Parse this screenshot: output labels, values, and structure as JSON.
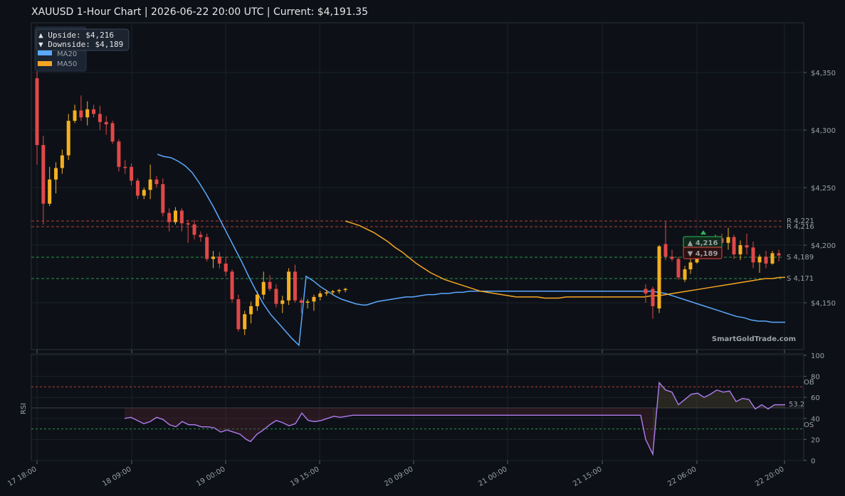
{
  "chart_data": {
    "type": "candlestick",
    "title": "XAUUSD  1-Hour Chart  |  2026-06-22 20:00 UTC  |  Current: $4,191.35",
    "price_axis": {
      "ylim": [
        4105,
        4390
      ],
      "ticks": [
        4150,
        4200,
        4250,
        4300,
        4350
      ],
      "tick_labels": [
        "$4,150",
        "$4,200",
        "$4,250",
        "$4,300",
        "$4,350"
      ]
    },
    "rsi_axis": {
      "ylabel": "RSI",
      "ylim": [
        0,
        100
      ],
      "ticks": [
        0,
        20,
        40,
        60,
        80,
        100
      ],
      "overbought": 70,
      "oversold": 30,
      "ob_label": "OB",
      "os_label": "OS",
      "current": 53.2,
      "current_label": "53.2"
    },
    "x_tick_labels": [
      "17 18:00",
      "18 09:00",
      "19 00:00",
      "19 15:00",
      "20 09:00",
      "21 00:00",
      "21 15:00",
      "22 06:00",
      "22 20:00"
    ],
    "info_box": {
      "upside": "▲ Upside:   $4,216",
      "downside": "▼ Downside: $4,189"
    },
    "legend": [
      {
        "name": "MA20",
        "color": "#5ba8ff"
      },
      {
        "name": "MA50",
        "color": "#f5a623"
      }
    ],
    "levels": [
      {
        "label": "R 4,221",
        "value": 4221,
        "color": "#e04848"
      },
      {
        "label": "R 4,216",
        "value": 4216,
        "color": "#e04848"
      },
      {
        "label": "S 4,189",
        "value": 4189,
        "color": "#2eb85c"
      },
      {
        "label": "S 4,171",
        "value": 4171,
        "color": "#2eb85c"
      }
    ],
    "targets": {
      "up_label": "▲ 4,216",
      "down_label": "▼ 4,189"
    },
    "watermark": "SmartGoldTrade.com",
    "candles": [
      [
        4345,
        4365,
        4270,
        4287
      ],
      [
        4287,
        4295,
        4218,
        4236
      ],
      [
        4236,
        4268,
        4234,
        4257
      ],
      [
        4257,
        4272,
        4245,
        4267
      ],
      [
        4267,
        4283,
        4262,
        4278
      ],
      [
        4278,
        4314,
        4274,
        4308
      ],
      [
        4308,
        4322,
        4306,
        4317
      ],
      [
        4317,
        4330,
        4308,
        4311
      ],
      [
        4311,
        4325,
        4304,
        4318
      ],
      [
        4318,
        4322,
        4311,
        4314
      ],
      [
        4314,
        4321,
        4300,
        4307
      ],
      [
        4307,
        4312,
        4296,
        4305
      ],
      [
        4306,
        4308,
        4288,
        4290
      ],
      [
        4290,
        4292,
        4264,
        4268
      ],
      [
        4268,
        4274,
        4262,
        4267
      ],
      [
        4268,
        4271,
        4252,
        4256
      ],
      [
        4256,
        4258,
        4240,
        4243
      ],
      [
        4243,
        4250,
        4240,
        4248
      ],
      [
        4248,
        4270,
        4240,
        4257
      ],
      [
        4257,
        4260,
        4250,
        4253
      ],
      [
        4253,
        4258,
        4225,
        4228
      ],
      [
        4228,
        4232,
        4212,
        4220
      ],
      [
        4220,
        4233,
        4218,
        4230
      ],
      [
        4230,
        4232,
        4212,
        4219
      ],
      [
        4219,
        4222,
        4202,
        4218
      ],
      [
        4218,
        4222,
        4205,
        4209
      ],
      [
        4209,
        4212,
        4203,
        4207
      ],
      [
        4207,
        4210,
        4186,
        4188
      ],
      [
        4188,
        4195,
        4180,
        4190
      ],
      [
        4190,
        4194,
        4180,
        4184
      ],
      [
        4184,
        4190,
        4173,
        4177
      ],
      [
        4177,
        4179,
        4150,
        4153
      ],
      [
        4153,
        4157,
        4125,
        4127
      ],
      [
        4127,
        4143,
        4122,
        4140
      ],
      [
        4140,
        4151,
        4132,
        4147
      ],
      [
        4147,
        4160,
        4143,
        4157
      ],
      [
        4157,
        4177,
        4153,
        4168
      ],
      [
        4168,
        4174,
        4160,
        4162
      ],
      [
        4162,
        4166,
        4146,
        4149
      ],
      [
        4149,
        4156,
        4141,
        4152
      ],
      [
        4152,
        4180,
        4148,
        4177
      ],
      [
        4177,
        4183,
        4150,
        4152
      ],
      [
        4152,
        4154,
        4141,
        4150
      ],
      [
        4150,
        4153,
        4145,
        4151
      ],
      [
        4151,
        4157,
        4143,
        4155
      ],
      [
        4155,
        4160,
        4152,
        4158
      ],
      [
        4158,
        4161,
        4156,
        4159
      ],
      [
        4159,
        4161,
        4157,
        4160
      ],
      [
        4160,
        4162,
        4158,
        4161
      ],
      [
        4161,
        4163,
        4159,
        4162
      ],
      [
        4162,
        4166,
        4150,
        4158
      ],
      [
        4162,
        4164,
        4136,
        4147
      ],
      [
        4145,
        4200,
        4141,
        4199
      ],
      [
        4201,
        4221,
        4187,
        4190
      ],
      [
        4190,
        4196,
        4186,
        4188
      ],
      [
        4188,
        4190,
        4170,
        4172
      ],
      [
        4170,
        4182,
        4168,
        4179
      ],
      [
        4179,
        4188,
        4175,
        4185
      ],
      [
        4185,
        4196,
        4184,
        4193
      ],
      [
        4193,
        4201,
        4190,
        4199
      ],
      [
        4199,
        4203,
        4196,
        4201
      ],
      [
        4201,
        4209,
        4198,
        4206
      ],
      [
        4206,
        4210,
        4200,
        4202
      ],
      [
        4202,
        4215,
        4196,
        4207
      ],
      [
        4207,
        4209,
        4188,
        4192
      ],
      [
        4192,
        4204,
        4187,
        4200
      ],
      [
        4200,
        4210,
        4192,
        4198
      ],
      [
        4198,
        4203,
        4180,
        4185
      ],
      [
        4185,
        4192,
        4176,
        4190
      ],
      [
        4190,
        4195,
        4180,
        4184
      ],
      [
        4184,
        4195,
        4183,
        4193
      ],
      [
        4193,
        4196,
        4186,
        4191
      ]
    ],
    "ma20": [
      [
        221,
        4279
      ],
      [
        230,
        4277
      ],
      [
        240,
        4276
      ],
      [
        250,
        4273
      ],
      [
        260,
        4269
      ],
      [
        270,
        4263
      ],
      [
        280,
        4254
      ],
      [
        290,
        4244
      ],
      [
        300,
        4233
      ],
      [
        310,
        4221
      ],
      [
        320,
        4209
      ],
      [
        330,
        4197
      ],
      [
        340,
        4185
      ],
      [
        350,
        4172
      ],
      [
        360,
        4160
      ],
      [
        370,
        4149
      ],
      [
        380,
        4140
      ],
      [
        390,
        4133
      ],
      [
        400,
        4126
      ],
      [
        410,
        4119
      ],
      [
        420,
        4113
      ],
      [
        430,
        4108
      ],
      [
        440,
        4104
      ],
      [
        450,
        4099
      ],
      [
        460,
        4095
      ],
      [
        470,
        4091
      ],
      [
        480,
        4088
      ],
      [
        490,
        4086
      ],
      [
        500,
        4084
      ],
      [
        510,
        4083
      ],
      [
        515,
        4083
      ],
      [
        520,
        4084
      ],
      [
        530,
        4086
      ],
      [
        540,
        4087
      ],
      [
        550,
        4088
      ],
      [
        560,
        4089
      ],
      [
        570,
        4090
      ],
      [
        580,
        4090
      ],
      [
        590,
        4091
      ],
      [
        600,
        4092
      ],
      [
        610,
        4092
      ],
      [
        620,
        4093
      ],
      [
        630,
        4093
      ],
      [
        640,
        4094
      ],
      [
        650,
        4094
      ],
      [
        660,
        4095
      ],
      [
        680,
        4095
      ],
      [
        700,
        4095
      ],
      [
        720,
        4095
      ],
      [
        740,
        4095
      ],
      [
        760,
        4095
      ],
      [
        780,
        4095
      ],
      [
        800,
        4095
      ],
      [
        820,
        4095
      ],
      [
        840,
        4095
      ],
      [
        860,
        4095
      ],
      [
        880,
        4095
      ],
      [
        900,
        4095
      ],
      [
        915,
        4095
      ],
      [
        925,
        4094
      ],
      [
        935,
        4093
      ],
      [
        945,
        4091
      ],
      [
        955,
        4089
      ],
      [
        965,
        4087
      ],
      [
        975,
        4085
      ],
      [
        985,
        4083
      ],
      [
        995,
        4081
      ],
      [
        1005,
        4079
      ],
      [
        1015,
        4077
      ],
      [
        1025,
        4075
      ],
      [
        1035,
        4073
      ],
      [
        1045,
        4072
      ],
      [
        1055,
        4070
      ],
      [
        1065,
        4069
      ],
      [
        1075,
        4069
      ],
      [
        1085,
        4068
      ],
      [
        1095,
        4068
      ],
      [
        1103,
        4068
      ]
    ],
    "ma50": [
      [
        485,
        4221
      ],
      [
        495,
        4219
      ],
      [
        505,
        4217
      ],
      [
        515,
        4214
      ],
      [
        525,
        4211
      ],
      [
        535,
        4207
      ],
      [
        545,
        4203
      ],
      [
        555,
        4198
      ],
      [
        565,
        4194
      ],
      [
        575,
        4189
      ],
      [
        585,
        4184
      ],
      [
        595,
        4180
      ],
      [
        605,
        4176
      ],
      [
        615,
        4173
      ],
      [
        625,
        4170
      ],
      [
        635,
        4168
      ],
      [
        645,
        4166
      ],
      [
        655,
        4164
      ],
      [
        665,
        4162
      ],
      [
        675,
        4160
      ],
      [
        685,
        4159
      ],
      [
        695,
        4158
      ],
      [
        705,
        4157
      ],
      [
        715,
        4156
      ],
      [
        725,
        4155
      ],
      [
        735,
        4155
      ],
      [
        745,
        4155
      ],
      [
        755,
        4155
      ],
      [
        765,
        4154
      ],
      [
        775,
        4154
      ],
      [
        785,
        4154
      ],
      [
        795,
        4155
      ],
      [
        805,
        4155
      ],
      [
        815,
        4155
      ],
      [
        825,
        4155
      ],
      [
        835,
        4155
      ],
      [
        845,
        4155
      ],
      [
        855,
        4155
      ],
      [
        865,
        4155
      ],
      [
        875,
        4155
      ],
      [
        885,
        4155
      ],
      [
        895,
        4155
      ],
      [
        905,
        4155
      ],
      [
        915,
        4156
      ],
      [
        925,
        4156
      ],
      [
        935,
        4157
      ],
      [
        945,
        4158
      ],
      [
        955,
        4159
      ],
      [
        965,
        4160
      ],
      [
        975,
        4161
      ],
      [
        985,
        4162
      ],
      [
        995,
        4163
      ],
      [
        1005,
        4164
      ],
      [
        1015,
        4165
      ],
      [
        1025,
        4166
      ],
      [
        1035,
        4167
      ],
      [
        1045,
        4168
      ],
      [
        1055,
        4169
      ],
      [
        1065,
        4170
      ],
      [
        1075,
        4171
      ],
      [
        1085,
        4171
      ],
      [
        1095,
        4172
      ],
      [
        1103,
        4172
      ]
    ],
    "rsi": [
      [
        175,
        40
      ],
      [
        184,
        41
      ],
      [
        193,
        38
      ],
      [
        202,
        35
      ],
      [
        211,
        37
      ],
      [
        220,
        41
      ],
      [
        229,
        39
      ],
      [
        238,
        34
      ],
      [
        247,
        32
      ],
      [
        256,
        37
      ],
      [
        265,
        34
      ],
      [
        274,
        34
      ],
      [
        283,
        32
      ],
      [
        292,
        32
      ],
      [
        301,
        31
      ],
      [
        310,
        27
      ],
      [
        319,
        29
      ],
      [
        328,
        27
      ],
      [
        337,
        25
      ],
      [
        346,
        20
      ],
      [
        352,
        18
      ],
      [
        361,
        25
      ],
      [
        370,
        29
      ],
      [
        379,
        34
      ],
      [
        388,
        38
      ],
      [
        397,
        36
      ],
      [
        406,
        33
      ],
      [
        415,
        35
      ],
      [
        424,
        45
      ],
      [
        433,
        38
      ],
      [
        442,
        37
      ],
      [
        451,
        38
      ],
      [
        460,
        40
      ],
      [
        469,
        42
      ],
      [
        478,
        41
      ],
      [
        487,
        42
      ],
      [
        496,
        43
      ],
      [
        505,
        43
      ],
      [
        520,
        43
      ],
      [
        560,
        43
      ],
      [
        600,
        43
      ],
      [
        640,
        43
      ],
      [
        680,
        43
      ],
      [
        720,
        43
      ],
      [
        760,
        43
      ],
      [
        800,
        43
      ],
      [
        840,
        43
      ],
      [
        880,
        43
      ],
      [
        900,
        43
      ],
      [
        907,
        20
      ],
      [
        917,
        6
      ],
      [
        926,
        74
      ],
      [
        935,
        67
      ],
      [
        944,
        65
      ],
      [
        953,
        53
      ],
      [
        962,
        58
      ],
      [
        971,
        63
      ],
      [
        980,
        64
      ],
      [
        989,
        60
      ],
      [
        998,
        63
      ],
      [
        1007,
        67
      ],
      [
        1016,
        65
      ],
      [
        1025,
        66
      ],
      [
        1034,
        56
      ],
      [
        1043,
        59
      ],
      [
        1052,
        58
      ],
      [
        1061,
        49
      ],
      [
        1070,
        53
      ],
      [
        1079,
        49
      ],
      [
        1088,
        53
      ],
      [
        1097,
        53
      ],
      [
        1103,
        53
      ]
    ]
  }
}
